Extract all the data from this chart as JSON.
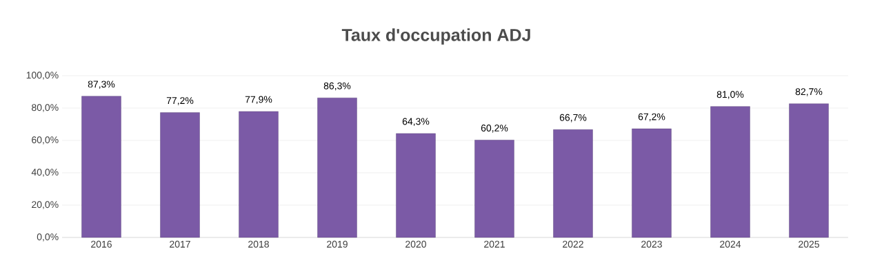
{
  "chart_data": {
    "type": "bar",
    "title": "Taux d'occupation ADJ",
    "categories": [
      "2016",
      "2017",
      "2018",
      "2019",
      "2020",
      "2021",
      "2022",
      "2023",
      "2024",
      "2025"
    ],
    "values": [
      87.3,
      77.2,
      77.9,
      86.3,
      64.3,
      60.2,
      66.7,
      67.2,
      81.0,
      82.7
    ],
    "value_labels": [
      "87,3%",
      "77,2%",
      "77,9%",
      "86,3%",
      "64,3%",
      "60,2%",
      "66,7%",
      "67,2%",
      "81,0%",
      "82,7%"
    ],
    "color": "#7b5aa6",
    "ylim": [
      0,
      100
    ],
    "yticks": [
      {
        "value": 0,
        "label": "0,0%"
      },
      {
        "value": 20,
        "label": "20,0%"
      },
      {
        "value": 40,
        "label": "40,0%"
      },
      {
        "value": 60,
        "label": "60,0%"
      },
      {
        "value": 80,
        "label": "80,0%"
      },
      {
        "value": 100,
        "label": "100,0%"
      }
    ],
    "grid": "y"
  }
}
